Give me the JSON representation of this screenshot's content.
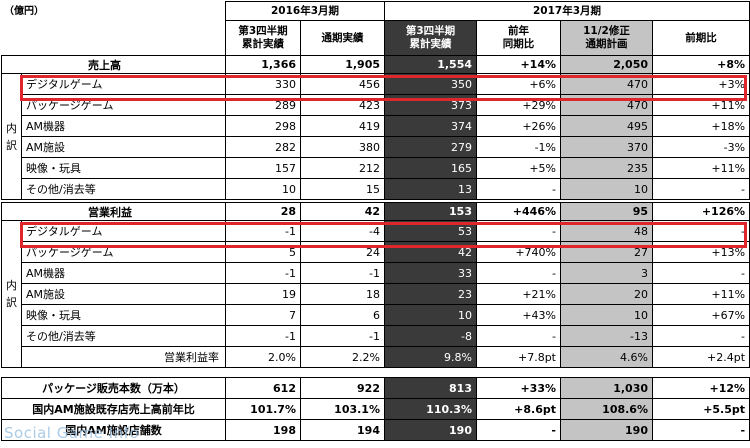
{
  "unit_label": "（億円）",
  "headers": {
    "fy2016": "2016年3月期",
    "fy2017": "2017年3月期",
    "cols": [
      "第3四半期\n累計実績",
      "通期実績",
      "第3四半期\n累計実績",
      "前年\n同期比",
      "11/2修正\n通期計画",
      "前期比"
    ]
  },
  "side_labels": {
    "uchiwake": "内\n訳"
  },
  "sales": {
    "title": "売上高",
    "total": [
      "1,366",
      "1,905",
      "1,554",
      "+14%",
      "2,050",
      "+8%"
    ],
    "rows": [
      {
        "label": "デジタルゲーム",
        "values": [
          "330",
          "456",
          "350",
          "+6%",
          "470",
          "+3%"
        ]
      },
      {
        "label": "パッケージゲーム",
        "values": [
          "289",
          "423",
          "373",
          "+29%",
          "470",
          "+11%"
        ]
      },
      {
        "label": "AM機器",
        "values": [
          "298",
          "419",
          "374",
          "+26%",
          "495",
          "+18%"
        ]
      },
      {
        "label": "AM施設",
        "values": [
          "282",
          "380",
          "279",
          "-1%",
          "370",
          "-3%"
        ]
      },
      {
        "label": "映像・玩具",
        "values": [
          "157",
          "212",
          "165",
          "+5%",
          "235",
          "+11%"
        ]
      },
      {
        "label": "その他/消去等",
        "values": [
          "10",
          "15",
          "13",
          "-",
          "10",
          "-"
        ]
      }
    ]
  },
  "profit": {
    "title": "営業利益",
    "total": [
      "28",
      "42",
      "153",
      "+446%",
      "95",
      "+126%"
    ],
    "rows": [
      {
        "label": "デジタルゲーム",
        "values": [
          "-1",
          "-4",
          "53",
          "-",
          "48",
          "-"
        ]
      },
      {
        "label": "パッケージゲーム",
        "values": [
          "5",
          "24",
          "42",
          "+740%",
          "27",
          "+13%"
        ]
      },
      {
        "label": "AM機器",
        "values": [
          "-1",
          "-1",
          "33",
          "-",
          "3",
          "-"
        ]
      },
      {
        "label": "AM施設",
        "values": [
          "19",
          "18",
          "23",
          "+21%",
          "20",
          "+11%"
        ]
      },
      {
        "label": "映像・玩具",
        "values": [
          "7",
          "6",
          "10",
          "+43%",
          "10",
          "+67%"
        ]
      },
      {
        "label": "その他/消去等",
        "values": [
          "-1",
          "-1",
          "-8",
          "-",
          "-13",
          "-"
        ]
      }
    ],
    "margin": {
      "label": "営業利益率",
      "values": [
        "2.0%",
        "2.2%",
        "9.8%",
        "+7.8pt",
        "4.6%",
        "+2.4pt"
      ]
    }
  },
  "kpis": [
    {
      "label": "パッケージ販売本数（万本）",
      "values": [
        "612",
        "922",
        "813",
        "+33%",
        "1,030",
        "+12%"
      ]
    },
    {
      "label": "国内AM施設既存店売上高前年比",
      "values": [
        "101.7%",
        "103.1%",
        "110.3%",
        "+8.6pt",
        "108.6%",
        "+5.5pt"
      ]
    },
    {
      "label": "国内AM施設店舗数",
      "values": [
        "198",
        "194",
        "190",
        "-",
        "190",
        "-"
      ]
    }
  ],
  "watermark": "Social Game Info",
  "colors": {
    "highlight": "#e0262d",
    "dark_col": "#3a3a3a",
    "gray_col": "#c4c4c4"
  }
}
